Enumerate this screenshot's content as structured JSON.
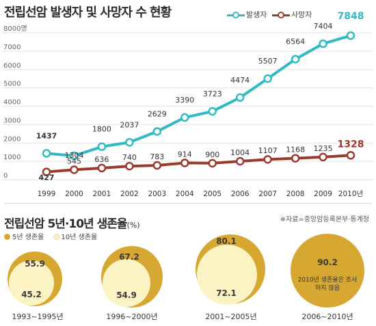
{
  "incidence_chart": {
    "title": "전립선암 발생자 및 사망자 수 현황",
    "legend": [
      {
        "name": "발생자",
        "color": "#31b9c4"
      },
      {
        "name": "사망자",
        "color": "#9a3a2c"
      }
    ]
  },
  "survival_chart": {
    "title": "전립선암 5년·10년 생존율",
    "unit": "(%)",
    "source": "※자료=중앙암등록본부·통계청",
    "legend": [
      {
        "name": "5년 생존율",
        "color": "#d6a832"
      },
      {
        "name": "10년 생존율",
        "color": "#fbf3c3"
      }
    ],
    "note": "2010년 생존율은 조사하지 않음"
  },
  "chart_data": [
    {
      "type": "line",
      "title": "전립선암 발생자 및 사망자 수 현황",
      "x": [
        "1999",
        "2000",
        "2001",
        "2002",
        "2003",
        "2004",
        "2005",
        "2006",
        "2007",
        "2008",
        "2009",
        "2010년"
      ],
      "ytick_labels": [
        "0",
        "1000",
        "2000",
        "3000",
        "4000",
        "5000",
        "6000",
        "7000",
        "8000명"
      ],
      "ylim": [
        0,
        8000
      ],
      "grid": true,
      "legend_position": "top",
      "series": [
        {
          "name": "발생자",
          "color": "#31b9c4",
          "values": [
            1437,
            1304,
            1800,
            2037,
            2629,
            3390,
            3723,
            4474,
            5507,
            6564,
            7404,
            7848
          ]
        },
        {
          "name": "사망자",
          "color": "#9a3a2c",
          "values": [
            427,
            545,
            636,
            740,
            783,
            914,
            900,
            1004,
            1107,
            1168,
            1235,
            1328
          ]
        }
      ]
    },
    {
      "type": "bubble",
      "title": "전립선암 5년·10년 생존율",
      "unit": "(%)",
      "categories": [
        "1993~1995년",
        "1996~2000년",
        "2001~2005년",
        "2006~2010년"
      ],
      "series": [
        {
          "name": "5년 생존율",
          "color": "#d6a832",
          "values": [
            55.9,
            67.2,
            80.1,
            90.2
          ]
        },
        {
          "name": "10년 생존율",
          "color": "#fbf3c3",
          "values": [
            45.2,
            54.9,
            72.1,
            null
          ]
        }
      ]
    }
  ]
}
